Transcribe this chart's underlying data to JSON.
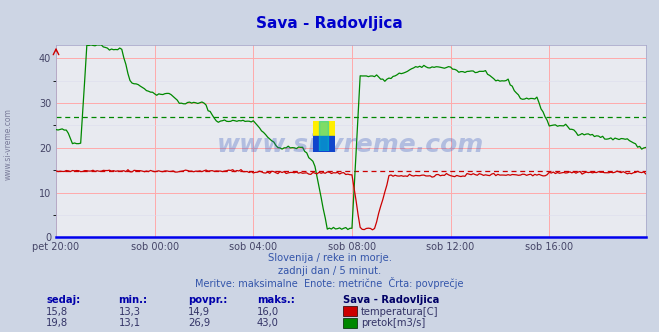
{
  "title": "Sava - Radovljica",
  "title_color": "#0000cc",
  "bg_color": "#cdd5e4",
  "plot_bg_color": "#e8eaf0",
  "grid_color_h": "#ffaaaa",
  "grid_color_v": "#ffaaaa",
  "grid_color_minor": "#ddddee",
  "ylim": [
    0,
    43
  ],
  "yticks": [
    0,
    10,
    20,
    30,
    40
  ],
  "tick_color": "#444466",
  "axis_color": "#0000dd",
  "watermark": "www.si-vreme.com",
  "watermark_color": "#3355bb",
  "watermark_alpha": 0.3,
  "left_label": "www.si-vreme.com",
  "left_label_color": "#666688",
  "subtitle1": "Slovenija / reke in morje.",
  "subtitle2": "zadnji dan / 5 minut.",
  "subtitle3": "Meritve: maksimalne  Enote: metrične  Črta: povprečje",
  "subtitle_color": "#3355aa",
  "temp_color": "#cc0000",
  "flow_color": "#008800",
  "flow_avg_val": 26.9,
  "temp_avg_val": 14.9,
  "legend_title": "Sava - Radovljica",
  "legend_title_color": "#000066",
  "table_header_color": "#0000aa",
  "table_val_color": "#333366",
  "n_points": 288,
  "x_tick_labels": [
    "pet 20:00",
    "sob 00:00",
    "sob 04:00",
    "sob 08:00",
    "sob 12:00",
    "sob 16:00"
  ],
  "x_tick_positions": [
    0,
    48,
    96,
    144,
    192,
    240
  ],
  "arrow_color": "#cc0000"
}
